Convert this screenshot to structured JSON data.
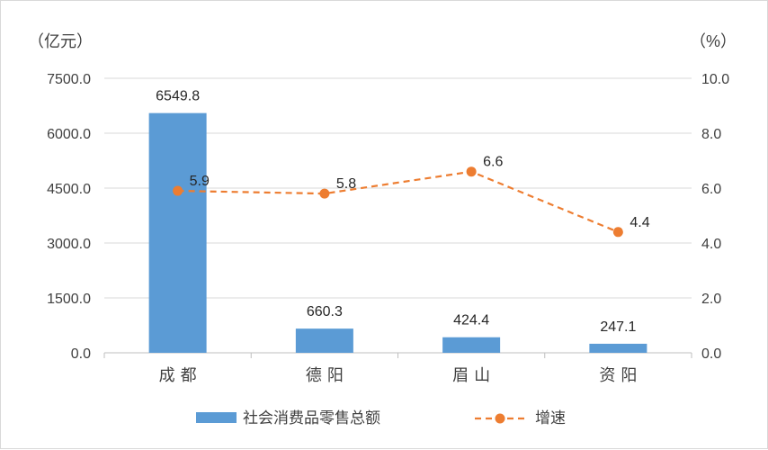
{
  "chart_data": {
    "type": "bar",
    "categories": [
      "成都",
      "德阳",
      "眉山",
      "资阳"
    ],
    "series": [
      {
        "name": "社会消费品零售总额",
        "kind": "bar",
        "axis": "left",
        "values": [
          6549.8,
          660.3,
          424.4,
          247.1
        ],
        "labels": [
          "6549.8",
          "660.3",
          "424.4",
          "247.1"
        ],
        "color": "#5b9bd5"
      },
      {
        "name": "增速",
        "kind": "line",
        "style": "dashed",
        "axis": "right",
        "values": [
          5.9,
          5.8,
          6.6,
          4.4
        ],
        "labels": [
          "5.9",
          "5.8",
          "6.6",
          "4.4"
        ],
        "color": "#ed7d31"
      }
    ],
    "y_left": {
      "unit_label": "（亿元）",
      "ylim": [
        0,
        7500
      ],
      "ticks": [
        0,
        1500,
        3000,
        4500,
        6000,
        7500
      ],
      "tick_labels": [
        "0.0",
        "1500.0",
        "3000.0",
        "4500.0",
        "6000.0",
        "7500.0"
      ]
    },
    "y_right": {
      "unit_label": "（%）",
      "ylim": [
        0,
        10
      ],
      "ticks": [
        0,
        2,
        4,
        6,
        8,
        10
      ],
      "tick_labels": [
        "0.0",
        "2.0",
        "4.0",
        "6.0",
        "8.0",
        "10.0"
      ]
    },
    "grid": true,
    "legend_position": "bottom"
  }
}
